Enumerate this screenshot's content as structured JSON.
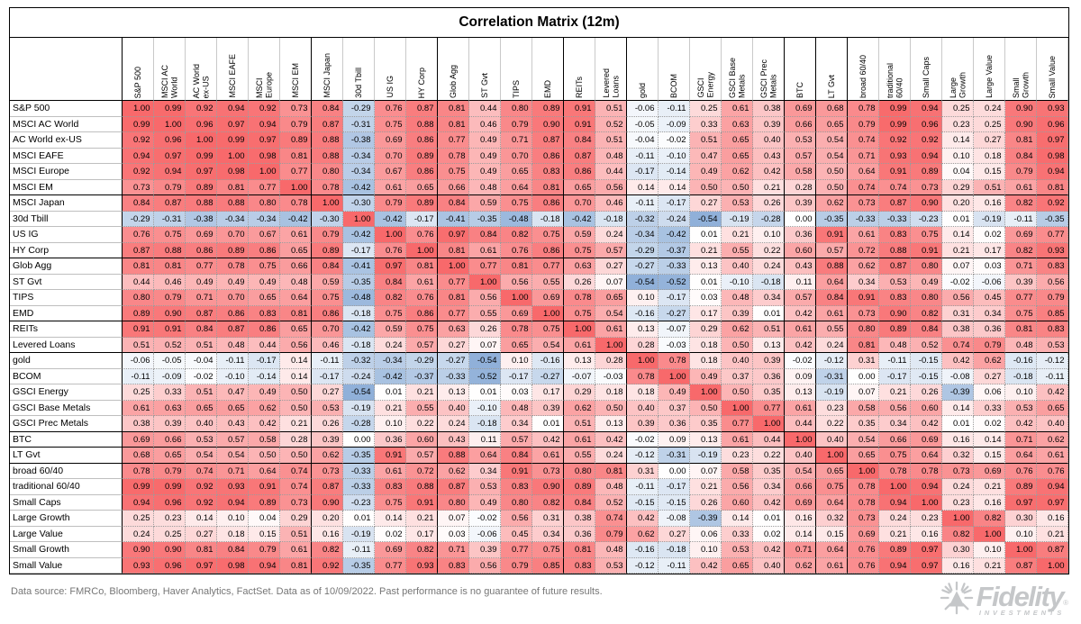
{
  "title": "Correlation Matrix (12m)",
  "footer": {
    "disclaimer": "Data source: FMRCo, Bloomberg, Haver Analytics, FactSet. Data as of 10/09/2022. Past performance is no guarantee of future results."
  },
  "logo": {
    "brand": "Fidelity",
    "registered_mark": "®",
    "sub_brand": "INVESTMENTS"
  },
  "chart_data": {
    "type": "heatmap",
    "title": "Correlation Matrix (12m)",
    "labels": [
      "S&P 500",
      "MSCI AC World",
      "AC World ex-US",
      "MSCI EAFE",
      "MSCI Europe",
      "MSCI EM",
      "MSCI Japan",
      "30d Tbill",
      "US IG",
      "HY Corp",
      "Glob Agg",
      "ST Gvt",
      "TIPS",
      "EMD",
      "REITs",
      "Levered Loans",
      "gold",
      "BCOM",
      "GSCI Energy",
      "GSCI Base Metals",
      "GSCI Prec Metals",
      "BTC",
      "LT Gvt",
      "broad 60/40",
      "traditional 60/40",
      "Small Caps",
      "Large Growth",
      "Large Value",
      "Small Growth",
      "Small Value"
    ],
    "col_labels_display": [
      "S&P 500",
      "MSCI AC\nWorld",
      "AC World\nex-US",
      "MSCI EAFE",
      "MSCI\nEurope",
      "MSCI EM",
      "MSCI Japan",
      "30d Tbill",
      "US IG",
      "HY Corp",
      "Glob Agg",
      "ST Gvt",
      "TIPS",
      "EMD",
      "REITs",
      "Levered\nLoans",
      "gold",
      "BCOM",
      "GSCI\nEnergy",
      "GSCI Base\nMetals",
      "GSCI Prec\nMetals",
      "BTC",
      "LT Gvt",
      "broad 60/40",
      "traditional\n60/40",
      "Small Caps",
      "Large\nGrowth",
      "Large Value",
      "Small\nGrowth",
      "Small Value"
    ],
    "matrix": [
      [
        1.0,
        0.99,
        0.92,
        0.94,
        0.92,
        0.73,
        0.84,
        -0.29,
        0.76,
        0.87,
        0.81,
        0.44,
        0.8,
        0.89,
        0.91,
        0.51,
        -0.06,
        -0.11,
        0.25,
        0.61,
        0.38,
        0.69,
        0.68,
        0.78,
        0.99,
        0.94,
        0.25,
        0.24,
        0.9,
        0.93
      ],
      [
        0.99,
        1.0,
        0.96,
        0.97,
        0.94,
        0.79,
        0.87,
        -0.31,
        0.75,
        0.88,
        0.81,
        0.46,
        0.79,
        0.9,
        0.91,
        0.52,
        -0.05,
        -0.09,
        0.33,
        0.63,
        0.39,
        0.66,
        0.65,
        0.79,
        0.99,
        0.96,
        0.23,
        0.25,
        0.9,
        0.96
      ],
      [
        0.92,
        0.96,
        1.0,
        0.99,
        0.97,
        0.89,
        0.88,
        -0.38,
        0.69,
        0.86,
        0.77,
        0.49,
        0.71,
        0.87,
        0.84,
        0.51,
        -0.04,
        -0.02,
        0.51,
        0.65,
        0.4,
        0.53,
        0.54,
        0.74,
        0.92,
        0.92,
        0.14,
        0.27,
        0.81,
        0.97
      ],
      [
        0.94,
        0.97,
        0.99,
        1.0,
        0.98,
        0.81,
        0.88,
        -0.34,
        0.7,
        0.89,
        0.78,
        0.49,
        0.7,
        0.86,
        0.87,
        0.48,
        -0.11,
        -0.1,
        0.47,
        0.65,
        0.43,
        0.57,
        0.54,
        0.71,
        0.93,
        0.94,
        0.1,
        0.18,
        0.84,
        0.98
      ],
      [
        0.92,
        0.94,
        0.97,
        0.98,
        1.0,
        0.77,
        0.8,
        -0.34,
        0.67,
        0.86,
        0.75,
        0.49,
        0.65,
        0.83,
        0.86,
        0.44,
        -0.17,
        -0.14,
        0.49,
        0.62,
        0.42,
        0.58,
        0.5,
        0.64,
        0.91,
        0.89,
        0.04,
        0.15,
        0.79,
        0.94
      ],
      [
        0.73,
        0.79,
        0.89,
        0.81,
        0.77,
        1.0,
        0.78,
        -0.42,
        0.61,
        0.65,
        0.66,
        0.48,
        0.64,
        0.81,
        0.65,
        0.56,
        0.14,
        0.14,
        0.5,
        0.5,
        0.21,
        0.28,
        0.5,
        0.74,
        0.74,
        0.73,
        0.29,
        0.51,
        0.61,
        0.81
      ],
      [
        0.84,
        0.87,
        0.88,
        0.88,
        0.8,
        0.78,
        1.0,
        -0.3,
        0.79,
        0.89,
        0.84,
        0.59,
        0.75,
        0.86,
        0.7,
        0.46,
        -0.11,
        -0.17,
        0.27,
        0.53,
        0.26,
        0.39,
        0.62,
        0.73,
        0.87,
        0.9,
        0.2,
        0.16,
        0.82,
        0.92
      ],
      [
        -0.29,
        -0.31,
        -0.38,
        -0.34,
        -0.34,
        -0.42,
        -0.3,
        1.0,
        -0.42,
        -0.17,
        -0.41,
        -0.35,
        -0.48,
        -0.18,
        -0.42,
        -0.18,
        -0.32,
        -0.24,
        -0.54,
        -0.19,
        -0.28,
        0.0,
        -0.35,
        -0.33,
        -0.33,
        -0.23,
        0.01,
        -0.19,
        -0.11,
        -0.35
      ],
      [
        0.76,
        0.75,
        0.69,
        0.7,
        0.67,
        0.61,
        0.79,
        -0.42,
        1.0,
        0.76,
        0.97,
        0.84,
        0.82,
        0.75,
        0.59,
        0.24,
        -0.34,
        -0.42,
        0.01,
        0.21,
        0.1,
        0.36,
        0.91,
        0.61,
        0.83,
        0.75,
        0.14,
        0.02,
        0.69,
        0.77
      ],
      [
        0.87,
        0.88,
        0.86,
        0.89,
        0.86,
        0.65,
        0.89,
        -0.17,
        0.76,
        1.0,
        0.81,
        0.61,
        0.76,
        0.86,
        0.75,
        0.57,
        -0.29,
        -0.37,
        0.21,
        0.55,
        0.22,
        0.6,
        0.57,
        0.72,
        0.88,
        0.91,
        0.21,
        0.17,
        0.82,
        0.93
      ],
      [
        0.81,
        0.81,
        0.77,
        0.78,
        0.75,
        0.66,
        0.84,
        -0.41,
        0.97,
        0.81,
        1.0,
        0.77,
        0.81,
        0.77,
        0.63,
        0.27,
        -0.27,
        -0.33,
        0.13,
        0.4,
        0.24,
        0.43,
        0.88,
        0.62,
        0.87,
        0.8,
        0.07,
        0.03,
        0.71,
        0.83
      ],
      [
        0.44,
        0.46,
        0.49,
        0.49,
        0.49,
        0.48,
        0.59,
        -0.35,
        0.84,
        0.61,
        0.77,
        1.0,
        0.56,
        0.55,
        0.26,
        0.07,
        -0.54,
        -0.52,
        0.01,
        -0.1,
        -0.18,
        0.11,
        0.64,
        0.34,
        0.53,
        0.49,
        -0.02,
        -0.06,
        0.39,
        0.56
      ],
      [
        0.8,
        0.79,
        0.71,
        0.7,
        0.65,
        0.64,
        0.75,
        -0.48,
        0.82,
        0.76,
        0.81,
        0.56,
        1.0,
        0.69,
        0.78,
        0.65,
        0.1,
        -0.17,
        0.03,
        0.48,
        0.34,
        0.57,
        0.84,
        0.91,
        0.83,
        0.8,
        0.56,
        0.45,
        0.77,
        0.79
      ],
      [
        0.89,
        0.9,
        0.87,
        0.86,
        0.83,
        0.81,
        0.86,
        -0.18,
        0.75,
        0.86,
        0.77,
        0.55,
        0.69,
        1.0,
        0.75,
        0.54,
        -0.16,
        -0.27,
        0.17,
        0.39,
        0.01,
        0.42,
        0.61,
        0.73,
        0.9,
        0.82,
        0.31,
        0.34,
        0.75,
        0.85
      ],
      [
        0.91,
        0.91,
        0.84,
        0.87,
        0.86,
        0.65,
        0.7,
        -0.42,
        0.59,
        0.75,
        0.63,
        0.26,
        0.78,
        0.75,
        1.0,
        0.61,
        0.13,
        -0.07,
        0.29,
        0.62,
        0.51,
        0.61,
        0.55,
        0.8,
        0.89,
        0.84,
        0.38,
        0.36,
        0.81,
        0.83
      ],
      [
        0.51,
        0.52,
        0.51,
        0.48,
        0.44,
        0.56,
        0.46,
        -0.18,
        0.24,
        0.57,
        0.27,
        0.07,
        0.65,
        0.54,
        0.61,
        1.0,
        0.28,
        -0.03,
        0.18,
        0.5,
        0.13,
        0.42,
        0.24,
        0.81,
        0.48,
        0.52,
        0.74,
        0.79,
        0.48,
        0.53
      ],
      [
        -0.06,
        -0.05,
        -0.04,
        -0.11,
        -0.17,
        0.14,
        -0.11,
        -0.32,
        -0.34,
        -0.29,
        -0.27,
        -0.54,
        0.1,
        -0.16,
        0.13,
        0.28,
        1.0,
        0.78,
        0.18,
        0.4,
        0.39,
        -0.02,
        -0.12,
        0.31,
        -0.11,
        -0.15,
        0.42,
        0.62,
        -0.16,
        -0.12
      ],
      [
        -0.11,
        -0.09,
        -0.02,
        -0.1,
        -0.14,
        0.14,
        -0.17,
        -0.24,
        -0.42,
        -0.37,
        -0.33,
        -0.52,
        -0.17,
        -0.27,
        -0.07,
        -0.03,
        0.78,
        1.0,
        0.49,
        0.37,
        0.36,
        0.09,
        -0.31,
        0.0,
        -0.17,
        -0.15,
        -0.08,
        0.27,
        -0.18,
        -0.11
      ],
      [
        0.25,
        0.33,
        0.51,
        0.47,
        0.49,
        0.5,
        0.27,
        -0.54,
        0.01,
        0.21,
        0.13,
        0.01,
        0.03,
        0.17,
        0.29,
        0.18,
        0.18,
        0.49,
        1.0,
        0.5,
        0.35,
        0.13,
        -0.19,
        0.07,
        0.21,
        0.26,
        -0.39,
        0.06,
        0.1,
        0.42
      ],
      [
        0.61,
        0.63,
        0.65,
        0.65,
        0.62,
        0.5,
        0.53,
        -0.19,
        0.21,
        0.55,
        0.4,
        -0.1,
        0.48,
        0.39,
        0.62,
        0.5,
        0.4,
        0.37,
        0.5,
        1.0,
        0.77,
        0.61,
        0.23,
        0.58,
        0.56,
        0.6,
        0.14,
        0.33,
        0.53,
        0.65
      ],
      [
        0.38,
        0.39,
        0.4,
        0.43,
        0.42,
        0.21,
        0.26,
        -0.28,
        0.1,
        0.22,
        0.24,
        -0.18,
        0.34,
        0.01,
        0.51,
        0.13,
        0.39,
        0.36,
        0.35,
        0.77,
        1.0,
        0.44,
        0.22,
        0.35,
        0.34,
        0.42,
        0.01,
        0.02,
        0.42,
        0.4
      ],
      [
        0.69,
        0.66,
        0.53,
        0.57,
        0.58,
        0.28,
        0.39,
        0.0,
        0.36,
        0.6,
        0.43,
        0.11,
        0.57,
        0.42,
        0.61,
        0.42,
        -0.02,
        0.09,
        0.13,
        0.61,
        0.44,
        1.0,
        0.4,
        0.54,
        0.66,
        0.69,
        0.16,
        0.14,
        0.71,
        0.62
      ],
      [
        0.68,
        0.65,
        0.54,
        0.54,
        0.5,
        0.5,
        0.62,
        -0.35,
        0.91,
        0.57,
        0.88,
        0.64,
        0.84,
        0.61,
        0.55,
        0.24,
        -0.12,
        -0.31,
        -0.19,
        0.23,
        0.22,
        0.4,
        1.0,
        0.65,
        0.75,
        0.64,
        0.32,
        0.15,
        0.64,
        0.61
      ],
      [
        0.78,
        0.79,
        0.74,
        0.71,
        0.64,
        0.74,
        0.73,
        -0.33,
        0.61,
        0.72,
        0.62,
        0.34,
        0.91,
        0.73,
        0.8,
        0.81,
        0.31,
        0.0,
        0.07,
        0.58,
        0.35,
        0.54,
        0.65,
        1.0,
        0.78,
        0.78,
        0.73,
        0.69,
        0.76,
        0.76
      ],
      [
        0.99,
        0.99,
        0.92,
        0.93,
        0.91,
        0.74,
        0.87,
        -0.33,
        0.83,
        0.88,
        0.87,
        0.53,
        0.83,
        0.9,
        0.89,
        0.48,
        -0.11,
        -0.17,
        0.21,
        0.56,
        0.34,
        0.66,
        0.75,
        0.78,
        1.0,
        0.94,
        0.24,
        0.21,
        0.89,
        0.94
      ],
      [
        0.94,
        0.96,
        0.92,
        0.94,
        0.89,
        0.73,
        0.9,
        -0.23,
        0.75,
        0.91,
        0.8,
        0.49,
        0.8,
        0.82,
        0.84,
        0.52,
        -0.15,
        -0.15,
        0.26,
        0.6,
        0.42,
        0.69,
        0.64,
        0.78,
        0.94,
        1.0,
        0.23,
        0.16,
        0.97,
        0.97
      ],
      [
        0.25,
        0.23,
        0.14,
        0.1,
        0.04,
        0.29,
        0.2,
        0.01,
        0.14,
        0.21,
        0.07,
        -0.02,
        0.56,
        0.31,
        0.38,
        0.74,
        0.42,
        -0.08,
        -0.39,
        0.14,
        0.01,
        0.16,
        0.32,
        0.73,
        0.24,
        0.23,
        1.0,
        0.82,
        0.3,
        0.16
      ],
      [
        0.24,
        0.25,
        0.27,
        0.18,
        0.15,
        0.51,
        0.16,
        -0.19,
        0.02,
        0.17,
        0.03,
        -0.06,
        0.45,
        0.34,
        0.36,
        0.79,
        0.62,
        0.27,
        0.06,
        0.33,
        0.02,
        0.14,
        0.15,
        0.69,
        0.21,
        0.16,
        0.82,
        1.0,
        0.1,
        0.21
      ],
      [
        0.9,
        0.9,
        0.81,
        0.84,
        0.79,
        0.61,
        0.82,
        -0.11,
        0.69,
        0.82,
        0.71,
        0.39,
        0.77,
        0.75,
        0.81,
        0.48,
        -0.16,
        -0.18,
        0.1,
        0.53,
        0.42,
        0.71,
        0.64,
        0.76,
        0.89,
        0.97,
        0.3,
        0.1,
        1.0,
        0.87
      ],
      [
        0.93,
        0.96,
        0.97,
        0.98,
        0.94,
        0.81,
        0.92,
        -0.35,
        0.77,
        0.93,
        0.83,
        0.56,
        0.79,
        0.85,
        0.83,
        0.53,
        -0.12,
        -0.11,
        0.42,
        0.65,
        0.4,
        0.62,
        0.61,
        0.76,
        0.94,
        0.97,
        0.16,
        0.21,
        0.87,
        1.0
      ]
    ],
    "value_format": "0.00",
    "color_scale": {
      "max_positive": "#F8696B",
      "mid": "#FFFFFF",
      "max_negative": "#5A8AC6"
    },
    "group_separators_after": [
      6,
      10,
      14,
      16,
      21,
      22,
      23
    ],
    "grid": "dotted",
    "legend_position": "none"
  }
}
